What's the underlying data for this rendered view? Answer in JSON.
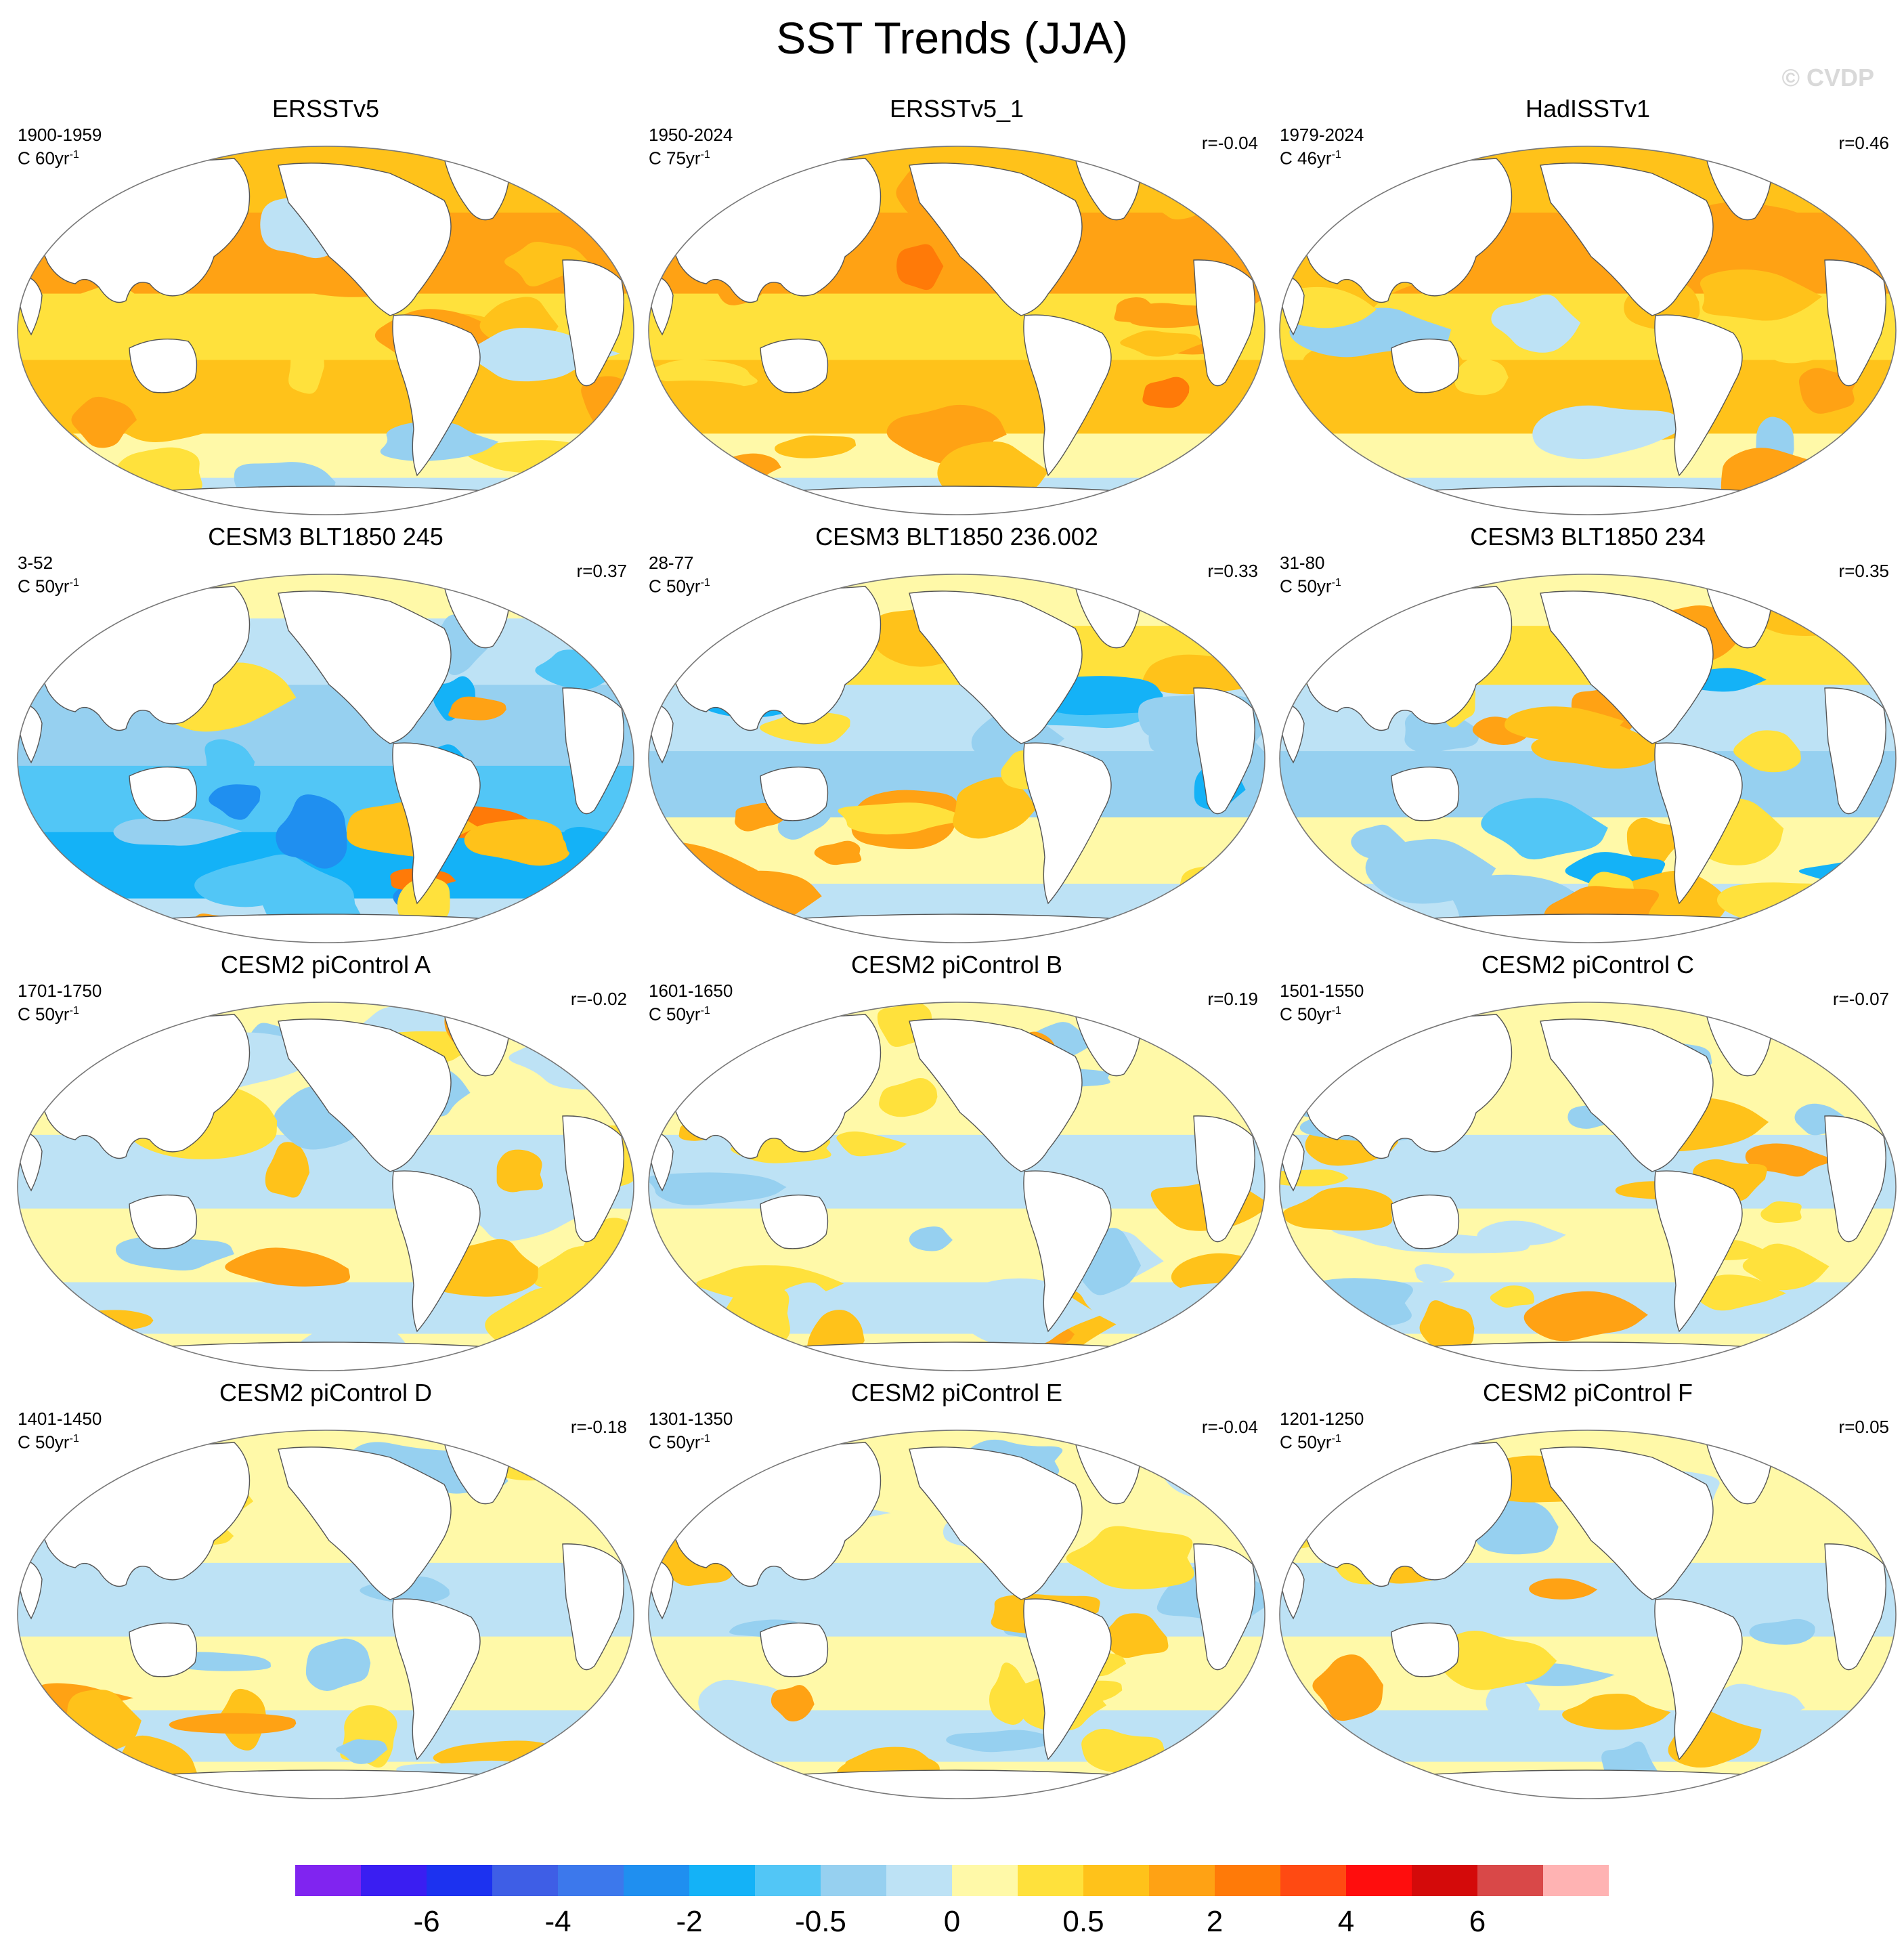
{
  "figure": {
    "title": "SST Trends (JJA)",
    "watermark": "© CVDP"
  },
  "chart_data": {
    "type": "heatmap",
    "projection": "Robinson (global map panels)",
    "variable": "SST trends, June-July-August",
    "panels": [
      {
        "title": "ERSSTv5",
        "period": "1900-1959",
        "units_prefix": "C 60yr",
        "units_exp": "-1",
        "r": "",
        "pattern": "warm",
        "level": 0.55
      },
      {
        "title": "ERSSTv5_1",
        "period": "1950-2024",
        "units_prefix": "C 75yr",
        "units_exp": "-1",
        "r": "r=-0.04",
        "pattern": "warm",
        "level": 0.85
      },
      {
        "title": "HadISSTv1",
        "period": "1979-2024",
        "units_prefix": "C 46yr",
        "units_exp": "-1",
        "r": "r=0.46",
        "pattern": "warm",
        "level": 0.65
      },
      {
        "title": "CESM3 BLT1850 245",
        "period": "3-52",
        "units_prefix": "C 50yr",
        "units_exp": "-1",
        "r": "r=0.37",
        "pattern": "cool",
        "level": 0.75
      },
      {
        "title": "CESM3 BLT1850 236.002",
        "period": "28-77",
        "units_prefix": "C 50yr",
        "units_exp": "-1",
        "r": "r=0.33",
        "pattern": "mixed",
        "level": 0.5
      },
      {
        "title": "CESM3 BLT1850 234",
        "period": "31-80",
        "units_prefix": "C 50yr",
        "units_exp": "-1",
        "r": "r=0.35",
        "pattern": "mixed",
        "level": 0.45
      },
      {
        "title": "CESM2 piControl A",
        "period": "1701-1750",
        "units_prefix": "C 50yr",
        "units_exp": "-1",
        "r": "r=-0.02",
        "pattern": "weak",
        "level": 0.3
      },
      {
        "title": "CESM2 piControl B",
        "period": "1601-1650",
        "units_prefix": "C 50yr",
        "units_exp": "-1",
        "r": "r=0.19",
        "pattern": "weak",
        "level": 0.3
      },
      {
        "title": "CESM2 piControl C",
        "period": "1501-1550",
        "units_prefix": "C 50yr",
        "units_exp": "-1",
        "r": "r=-0.07",
        "pattern": "weak",
        "level": 0.35
      },
      {
        "title": "CESM2 piControl D",
        "period": "1401-1450",
        "units_prefix": "C 50yr",
        "units_exp": "-1",
        "r": "r=-0.18",
        "pattern": "weak",
        "level": 0.3
      },
      {
        "title": "CESM2 piControl E",
        "period": "1301-1350",
        "units_prefix": "C 50yr",
        "units_exp": "-1",
        "r": "r=-0.04",
        "pattern": "weak",
        "level": 0.3
      },
      {
        "title": "CESM2 piControl F",
        "period": "1201-1250",
        "units_prefix": "C 50yr",
        "units_exp": "-1",
        "r": "r=0.05",
        "pattern": "weak",
        "level": 0.35
      }
    ],
    "colorbar": {
      "colors": [
        "#8024f0",
        "#3a1ef2",
        "#1c32f0",
        "#3e5ee6",
        "#3c78ec",
        "#1f8ff0",
        "#14b2f7",
        "#52c6f6",
        "#96d0f0",
        "#bde2f5",
        "#fff9a8",
        "#ffe13c",
        "#ffc21a",
        "#ffa214",
        "#ff7a08",
        "#ff4a12",
        "#ff0d0d",
        "#d40a0a",
        "#d94848",
        "#ffb3b3"
      ],
      "labels": [
        {
          "text": "-6",
          "after": 2
        },
        {
          "text": "-4",
          "after": 4
        },
        {
          "text": "-2",
          "after": 6
        },
        {
          "text": "-0.5",
          "after": 8
        },
        {
          "text": "0",
          "after": 10
        },
        {
          "text": "0.5",
          "after": 12
        },
        {
          "text": "2",
          "after": 14
        },
        {
          "text": "4",
          "after": 16
        },
        {
          "text": "6",
          "after": 18
        }
      ]
    }
  }
}
